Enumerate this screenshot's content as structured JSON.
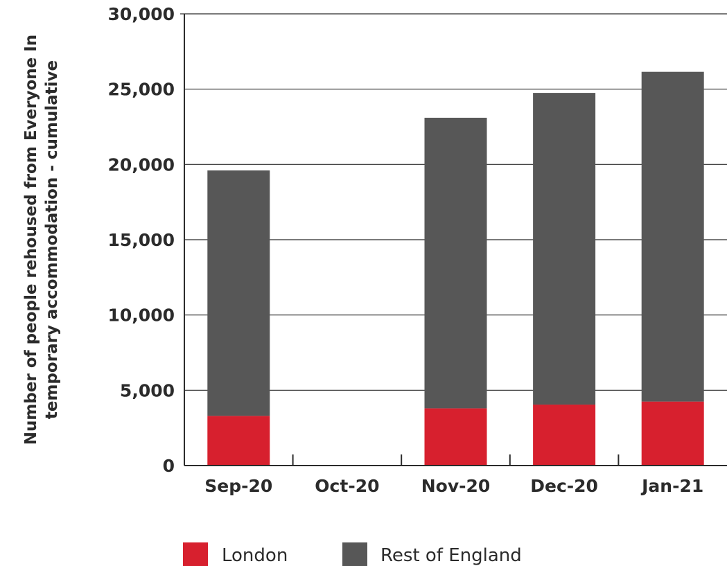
{
  "chart_data": {
    "type": "bar",
    "stacked": true,
    "title": "",
    "xlabel": "",
    "ylabel_lines": [
      "Number of people rehoused from Everyone In",
      "temporary accommodation - cumulative"
    ],
    "categories": [
      "Sep-20",
      "Oct-20",
      "Nov-20",
      "Dec-20",
      "Jan-21"
    ],
    "series": [
      {
        "name": "London",
        "color": "#d7202e",
        "values": [
          3300,
          null,
          3800,
          4050,
          4250
        ]
      },
      {
        "name": "Rest of England",
        "color": "#575757",
        "values": [
          16300,
          null,
          19300,
          20700,
          21900
        ]
      }
    ],
    "ylim": [
      0,
      30000
    ],
    "yticks": [
      0,
      5000,
      10000,
      15000,
      20000,
      25000,
      30000
    ],
    "ytick_labels": [
      "0",
      "5,000",
      "10,000",
      "15,000",
      "20,000",
      "25,000",
      "30,000"
    ],
    "grid": "horizontal",
    "legend_position": "bottom"
  }
}
